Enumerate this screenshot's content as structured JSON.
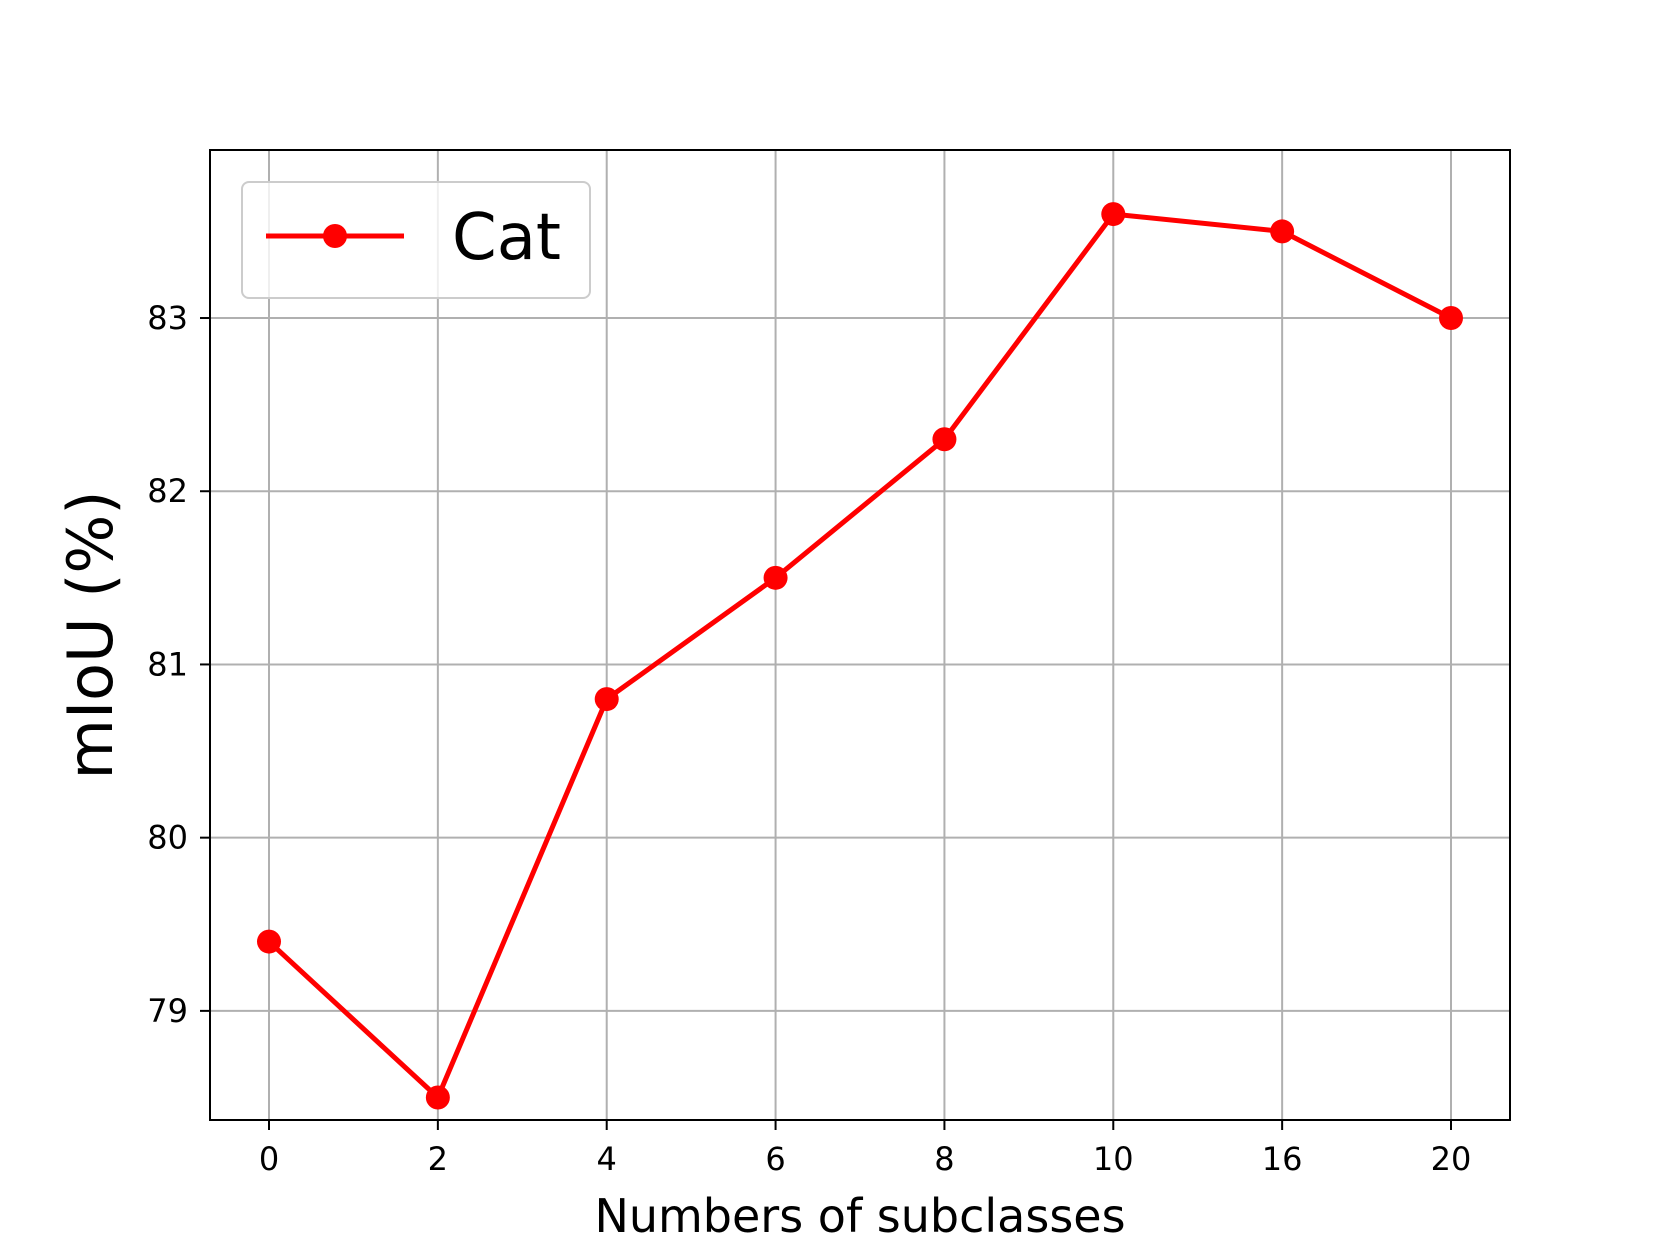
{
  "chart_data": {
    "type": "line",
    "xlabel": "Numbers of subclasses",
    "ylabel": "mIoU (%)",
    "x_tick_labels": [
      "0",
      "2",
      "4",
      "6",
      "8",
      "10",
      "16",
      "20"
    ],
    "y_ticks": [
      79,
      80,
      81,
      82,
      83
    ],
    "ylim": [
      78.37,
      83.97
    ],
    "grid": true,
    "legend_position": "top-left",
    "series": [
      {
        "name": "Cat",
        "color": "#ff0000",
        "marker": "circle",
        "values": [
          79.4,
          78.5,
          80.8,
          81.5,
          82.3,
          83.6,
          83.5,
          83.0
        ]
      }
    ]
  }
}
